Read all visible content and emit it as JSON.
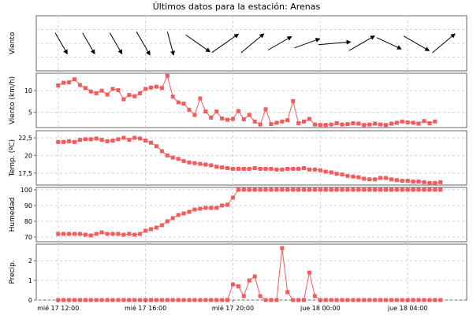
{
  "page_title": "Últimos datos para la estación: Arenas",
  "x_axis": {
    "tick_labels": [
      "mié 17 12:00",
      "mié 17 16:00",
      "mié 17 20:00",
      "jue 18 00:00",
      "jue 18 04:00"
    ],
    "hours_from_start": [
      0,
      4,
      8,
      12,
      16
    ],
    "domain_hours": [
      -1,
      18.7
    ],
    "sample_step_hours": 0.25
  },
  "colors": {
    "series": "#f25c5c",
    "grid": "#d0d0d0",
    "frame": "#666666",
    "wind_arrow": "#000000"
  },
  "chart_data": [
    {
      "type": "vector",
      "ylabel": "Viento",
      "grid": true,
      "x_start_hours": 0,
      "x_step_hours": 1.25,
      "direction_deg": [
        330,
        330,
        330,
        330,
        345,
        305,
        235,
        230,
        240,
        250,
        265,
        240,
        295,
        300,
        230
      ],
      "magnitude_rel": [
        0.45,
        0.45,
        0.45,
        0.5,
        0.45,
        0.55,
        0.6,
        0.55,
        0.5,
        0.5,
        0.6,
        0.55,
        0.5,
        0.55,
        0.55
      ]
    },
    {
      "type": "line",
      "ylabel": "Viento (km/h)",
      "ylim": [
        1.5,
        14
      ],
      "yticks": [
        5,
        10
      ],
      "grid": true,
      "x_start_hours": 0,
      "x_step_hours": 0.25,
      "values": [
        11.2,
        11.8,
        11.9,
        12.6,
        11.3,
        10.6,
        9.8,
        9.4,
        10.0,
        9.1,
        10.4,
        10.1,
        8.0,
        9.0,
        8.7,
        9.4,
        10.4,
        10.7,
        10.9,
        10.6,
        13.4,
        8.6,
        7.3,
        7.0,
        5.6,
        4.4,
        8.2,
        5.2,
        3.8,
        5.2,
        3.6,
        3.3,
        3.5,
        5.3,
        3.4,
        4.4,
        2.9,
        2.2,
        5.7,
        2.3,
        2.6,
        2.9,
        3.2,
        7.6,
        2.5,
        2.9,
        3.5,
        2.2,
        2.1,
        2.1,
        2.2,
        2.5,
        2.2,
        2.3,
        2.5,
        2.4,
        2.1,
        2.2,
        2.4,
        2.2,
        2.1,
        2.4,
        2.6,
        2.9,
        2.7,
        2.6,
        2.4,
        3.0,
        2.5,
        2.9
      ]
    },
    {
      "type": "line",
      "ylabel": "Temp. (ºC)",
      "ylim": [
        15.8,
        23.5
      ],
      "yticks": [
        17.5,
        20,
        22.5
      ],
      "ytick_labels": [
        "17,5",
        "20",
        "22,5"
      ],
      "grid": true,
      "x_start_hours": 0,
      "x_step_hours": 0.25,
      "values": [
        21.9,
        21.9,
        22.0,
        21.9,
        22.2,
        22.3,
        22.3,
        22.4,
        22.2,
        22.0,
        22.1,
        22.3,
        22.5,
        22.2,
        22.5,
        22.4,
        22.1,
        21.8,
        21.3,
        20.6,
        20.0,
        19.7,
        19.5,
        19.2,
        19.0,
        18.9,
        18.8,
        18.7,
        18.6,
        18.4,
        18.3,
        18.2,
        18.1,
        18.1,
        18.1,
        18.1,
        18.2,
        18.1,
        18.1,
        18.1,
        18.0,
        18.0,
        18.1,
        18.1,
        18.1,
        18.2,
        18.0,
        18.0,
        17.9,
        17.7,
        17.6,
        17.4,
        17.3,
        17.1,
        17.0,
        16.9,
        16.7,
        16.6,
        16.6,
        16.8,
        16.8,
        16.6,
        16.5,
        16.4,
        16.4,
        16.3,
        16.3,
        16.2,
        16.1,
        16.1,
        16.2
      ]
    },
    {
      "type": "line",
      "ylabel": "Humedad",
      "ylim": [
        67,
        101.5
      ],
      "yticks": [
        70,
        80,
        90,
        100
      ],
      "grid": true,
      "x_start_hours": 0,
      "x_step_hours": 0.25,
      "values": [
        72,
        72,
        72,
        72,
        72,
        71.5,
        71,
        72,
        73,
        72,
        72,
        72,
        71.5,
        72,
        71.5,
        72,
        74,
        75,
        76,
        77.5,
        80,
        82,
        84,
        85,
        86,
        87.5,
        88,
        88.5,
        88.5,
        88.5,
        90,
        90.5,
        95,
        100,
        100,
        100,
        100,
        100,
        100,
        100,
        100,
        100,
        100,
        100,
        100,
        100,
        100,
        100,
        100,
        100,
        100,
        100,
        100,
        100,
        100,
        100,
        100,
        100,
        100,
        100,
        100,
        100,
        100,
        100,
        100,
        100,
        100,
        100,
        100,
        100,
        100
      ]
    },
    {
      "type": "line",
      "ylabel": "Precip.",
      "ylim": [
        0,
        2.85
      ],
      "yticks": [
        0,
        1,
        2
      ],
      "grid": true,
      "x_start_hours": 0,
      "x_step_hours": 0.25,
      "values": [
        0,
        0,
        0,
        0,
        0,
        0,
        0,
        0,
        0,
        0,
        0,
        0,
        0,
        0,
        0,
        0,
        0,
        0,
        0,
        0,
        0,
        0,
        0,
        0,
        0,
        0,
        0,
        0,
        0,
        0,
        0,
        0,
        0.8,
        0.7,
        0.2,
        1.0,
        1.2,
        0.2,
        0,
        0,
        0,
        2.65,
        0.4,
        0,
        0,
        0,
        1.4,
        0.2,
        0,
        0,
        0,
        0,
        0,
        0,
        0,
        0,
        0,
        0,
        0,
        0,
        0,
        0,
        0,
        0,
        0,
        0,
        0,
        0,
        0,
        0,
        0
      ]
    }
  ]
}
